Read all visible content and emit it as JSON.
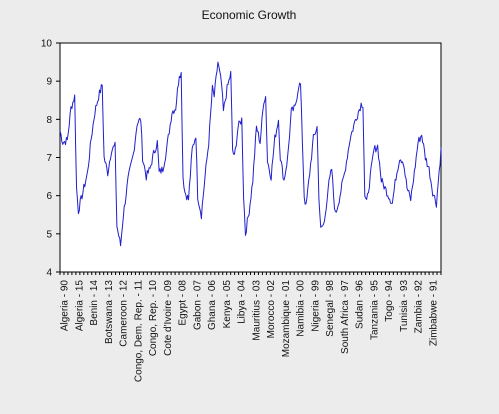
{
  "chart_data": {
    "type": "line",
    "title": "Economic Growth",
    "xlabel": "",
    "ylabel": "",
    "ylim": [
      4,
      10
    ],
    "yticks": [
      4,
      5,
      6,
      7,
      8,
      9,
      10
    ],
    "grid": false,
    "legend": "none",
    "colors": {
      "line": "#1f1fcf",
      "background": "#ececec",
      "plot_area": "#ffffff",
      "axis": "#000000"
    },
    "x_labels": [
      "Algeria - 90",
      "Algeria - 15",
      "Benin - 14",
      "Botswana - 13",
      "Cameroon - 12",
      "Congo, Dem. Rep. - 11",
      "Congo, Rep. - 10",
      "Cote d'Ivoire - 09",
      "Egypt - 08",
      "Gabon - 07",
      "Ghana - 06",
      "Kenya - 05",
      "Libya - 04",
      "Mauritius - 03",
      "Morocco - 02",
      "Mozambique - 01",
      "Namibia - 00",
      "Nigeria - 99",
      "Senegal - 98",
      "South Africa - 97",
      "Sudan - 96",
      "Tanzania - 95",
      "Togo - 94",
      "Tunisia - 93",
      "Zambia - 92",
      "Zimbabwe - 91"
    ],
    "n_points": 416,
    "keypoints": [
      [
        0,
        7.7
      ],
      [
        3,
        7.4
      ],
      [
        8,
        7.45
      ],
      [
        12,
        8.3
      ],
      [
        16,
        8.6
      ],
      [
        18,
        6.2
      ],
      [
        20,
        5.6
      ],
      [
        24,
        6.0
      ],
      [
        30,
        6.6
      ],
      [
        34,
        7.5
      ],
      [
        38,
        8.2
      ],
      [
        42,
        8.6
      ],
      [
        46,
        8.9
      ],
      [
        48,
        7.0
      ],
      [
        52,
        6.6
      ],
      [
        56,
        7.2
      ],
      [
        60,
        7.3
      ],
      [
        62,
        5.2
      ],
      [
        66,
        4.7
      ],
      [
        69,
        5.5
      ],
      [
        74,
        6.4
      ],
      [
        80,
        7.1
      ],
      [
        84,
        7.9
      ],
      [
        88,
        8.0
      ],
      [
        90,
        7.0
      ],
      [
        94,
        6.5
      ],
      [
        98,
        6.7
      ],
      [
        102,
        7.1
      ],
      [
        106,
        7.4
      ],
      [
        108,
        6.6
      ],
      [
        112,
        6.7
      ],
      [
        116,
        7.2
      ],
      [
        122,
        8.2
      ],
      [
        126,
        8.3
      ],
      [
        130,
        9.2
      ],
      [
        132,
        9.2
      ],
      [
        134,
        6.5
      ],
      [
        136,
        6.1
      ],
      [
        140,
        5.9
      ],
      [
        144,
        7.2
      ],
      [
        148,
        7.6
      ],
      [
        150,
        6.0
      ],
      [
        154,
        5.5
      ],
      [
        158,
        6.5
      ],
      [
        162,
        7.4
      ],
      [
        166,
        8.8
      ],
      [
        168,
        8.6
      ],
      [
        172,
        9.5
      ],
      [
        176,
        8.9
      ],
      [
        178,
        8.2
      ],
      [
        182,
        8.8
      ],
      [
        186,
        9.2
      ],
      [
        188,
        7.2
      ],
      [
        190,
        7.0
      ],
      [
        194,
        7.8
      ],
      [
        198,
        8.0
      ],
      [
        200,
        6.0
      ],
      [
        202,
        5.0
      ],
      [
        206,
        5.6
      ],
      [
        210,
        6.4
      ],
      [
        214,
        7.8
      ],
      [
        218,
        7.4
      ],
      [
        222,
        8.5
      ],
      [
        224,
        8.6
      ],
      [
        226,
        6.9
      ],
      [
        230,
        6.5
      ],
      [
        234,
        7.5
      ],
      [
        238,
        8.0
      ],
      [
        240,
        7.0
      ],
      [
        244,
        6.4
      ],
      [
        248,
        7.0
      ],
      [
        252,
        8.2
      ],
      [
        256,
        8.3
      ],
      [
        260,
        8.9
      ],
      [
        262,
        8.9
      ],
      [
        266,
        6.0
      ],
      [
        268,
        5.7
      ],
      [
        272,
        6.6
      ],
      [
        276,
        7.5
      ],
      [
        280,
        7.8
      ],
      [
        282,
        6.0
      ],
      [
        284,
        5.1
      ],
      [
        288,
        5.3
      ],
      [
        292,
        6.2
      ],
      [
        296,
        6.7
      ],
      [
        298,
        6.0
      ],
      [
        300,
        5.5
      ],
      [
        304,
        5.9
      ],
      [
        310,
        6.6
      ],
      [
        316,
        7.5
      ],
      [
        322,
        8.0
      ],
      [
        328,
        8.4
      ],
      [
        330,
        8.4
      ],
      [
        332,
        6.0
      ],
      [
        334,
        5.8
      ],
      [
        338,
        6.5
      ],
      [
        342,
        7.2
      ],
      [
        346,
        7.3
      ],
      [
        350,
        6.4
      ],
      [
        354,
        6.2
      ],
      [
        358,
        6.0
      ],
      [
        362,
        5.8
      ],
      [
        366,
        6.5
      ],
      [
        370,
        7.0
      ],
      [
        374,
        6.9
      ],
      [
        378,
        6.2
      ],
      [
        382,
        5.9
      ],
      [
        386,
        6.6
      ],
      [
        390,
        7.4
      ],
      [
        394,
        7.6
      ],
      [
        398,
        7.0
      ],
      [
        402,
        6.7
      ],
      [
        406,
        6.1
      ],
      [
        410,
        5.8
      ],
      [
        415,
        7.2
      ]
    ]
  }
}
